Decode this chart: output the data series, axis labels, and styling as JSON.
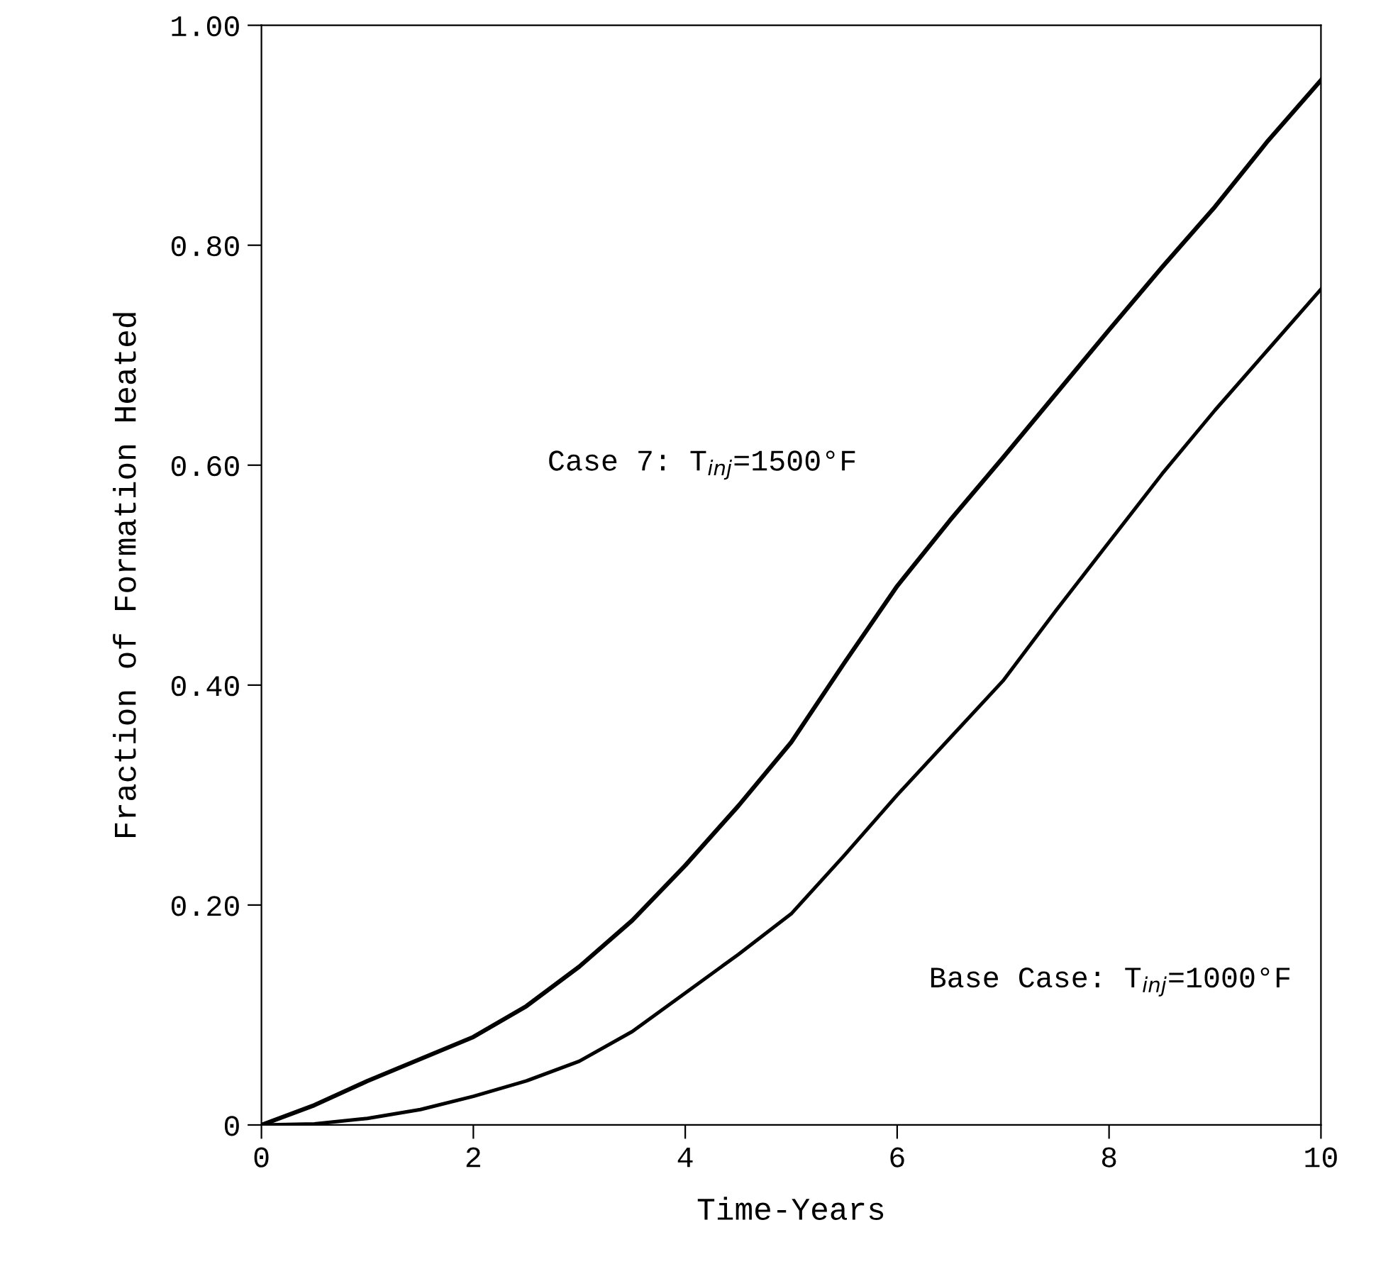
{
  "chart_data": {
    "type": "line",
    "xlabel": "Time-Years",
    "ylabel": "Fraction of Formation Heated",
    "x": [
      0,
      0.5,
      1,
      1.5,
      2,
      2.5,
      3,
      3.5,
      4,
      4.5,
      5,
      5.5,
      6,
      6.5,
      7,
      7.5,
      8,
      8.5,
      9,
      9.5,
      10
    ],
    "series": [
      {
        "color": "#000000",
        "values": [
          0,
          0.018,
          0.04,
          0.06,
          0.08,
          0.108,
          0.144,
          0.186,
          0.236,
          0.29,
          0.348,
          0.42,
          0.49,
          0.55,
          0.607,
          0.665,
          0.723,
          0.78,
          0.835,
          0.895,
          0.95
        ]
      },
      {
        "color": "#000000",
        "values": [
          0,
          0.001,
          0.006,
          0.014,
          0.026,
          0.04,
          0.058,
          0.085,
          0.12,
          0.155,
          0.192,
          0.245,
          0.3,
          0.352,
          0.404,
          0.468,
          0.53,
          0.592,
          0.65,
          0.705,
          0.76
        ]
      }
    ],
    "xlim": [
      0,
      10
    ],
    "xticks": [
      0,
      2,
      4,
      6,
      8,
      10
    ],
    "ylim": [
      0,
      1
    ],
    "yticks": [
      0,
      {
        "value": 0.2,
        "label": "0.20"
      },
      {
        "value": 0.4,
        "label": "0.40"
      },
      {
        "value": 0.6,
        "label": "0.60"
      },
      {
        "value": 0.8,
        "label": "0.80"
      },
      {
        "value": 1.0,
        "label": "1.00"
      }
    ],
    "grid": false,
    "legend": false,
    "marker": "none",
    "line_style": "solid",
    "annotations": [
      "Case 7: T$_{inj}$=1500°F",
      "Base Case: T$_{inj}$=1000°F"
    ]
  }
}
